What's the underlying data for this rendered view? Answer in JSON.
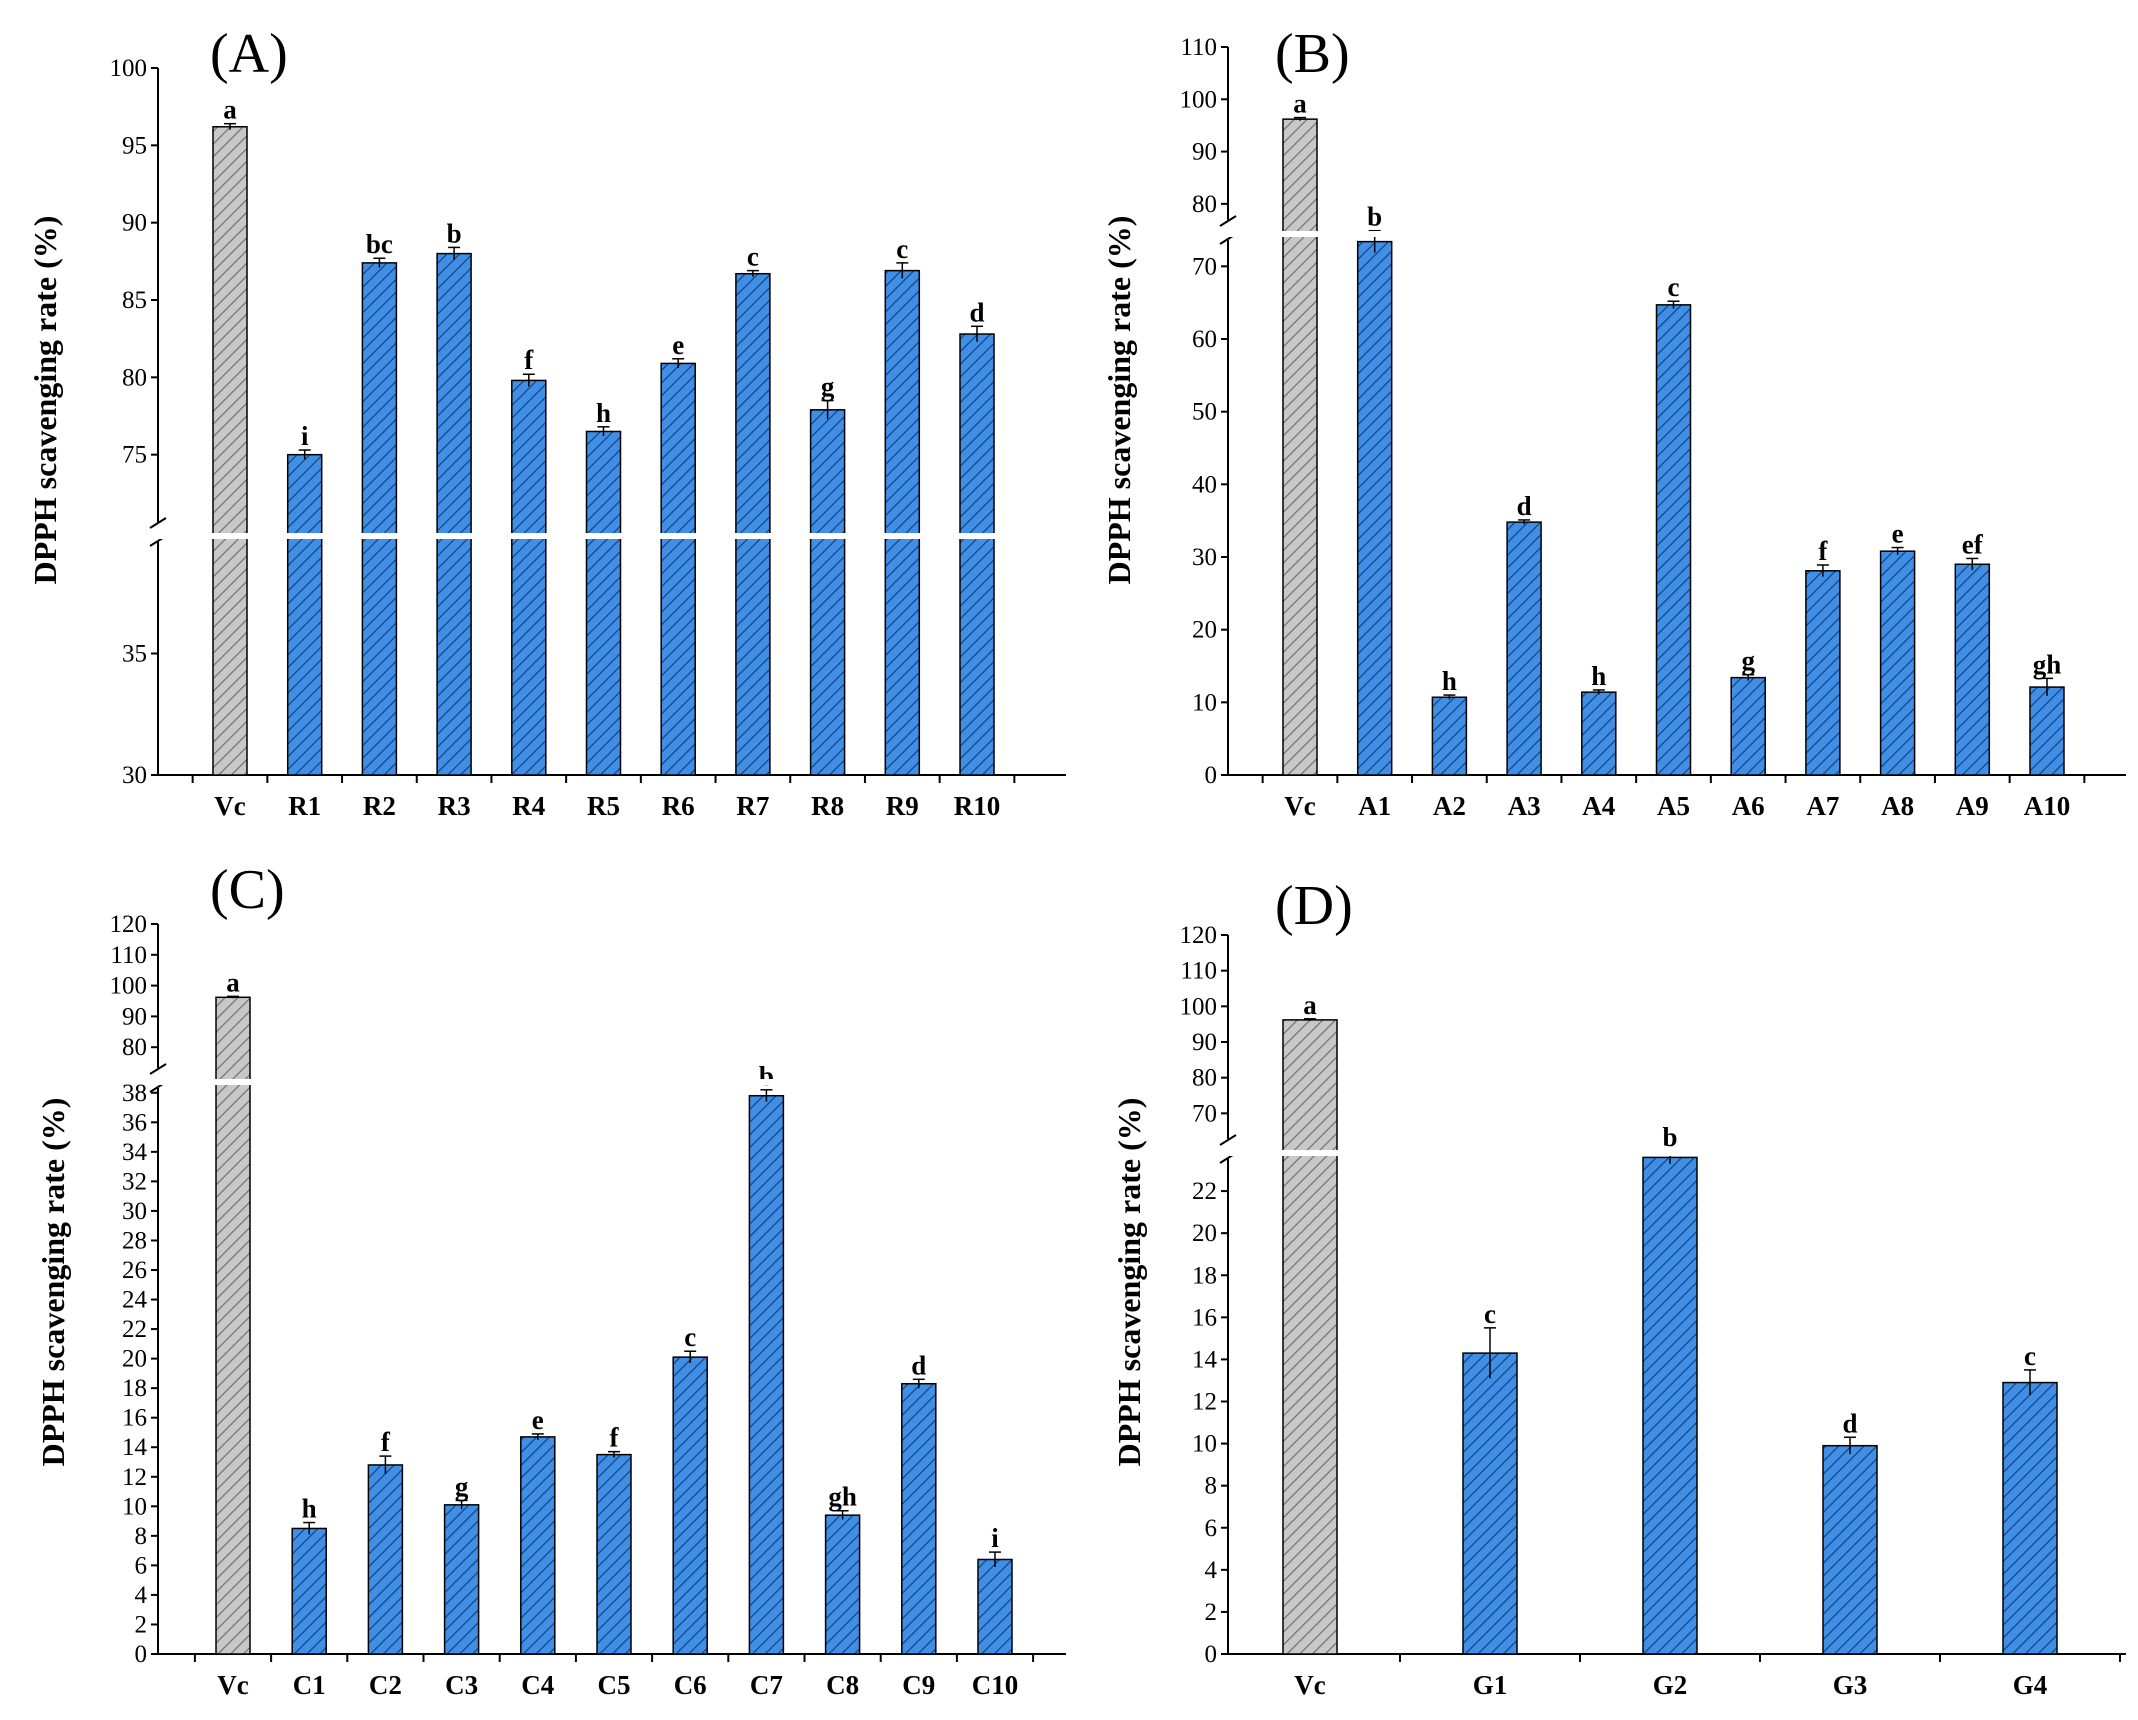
{
  "figure": {
    "colors": {
      "control_fill": "#c8c8c8",
      "control_hatch": "#6f6f6f",
      "bar_fill": "#3f8fe6",
      "bar_hatch": "#1a3f7a",
      "axis": "#000000"
    }
  },
  "chart_data": [
    {
      "panel": "(A)",
      "type": "bar",
      "ylabel": "DPPH scavenging rate (%)",
      "categories": [
        "Vc",
        "R1",
        "R2",
        "R3",
        "R4",
        "R5",
        "R6",
        "R7",
        "R8",
        "R9",
        "R10"
      ],
      "values": [
        96.2,
        75.0,
        87.4,
        88.0,
        79.8,
        76.5,
        80.9,
        86.7,
        77.9,
        86.9,
        82.8
      ],
      "errors": [
        0.2,
        0.3,
        0.3,
        0.4,
        0.4,
        0.3,
        0.3,
        0.2,
        0.6,
        0.5,
        0.5
      ],
      "letters": [
        "a",
        "i",
        "bc",
        "b",
        "f",
        "h",
        "e",
        "c",
        "g",
        "c",
        "d"
      ],
      "ylim": [
        30,
        100
      ],
      "axis_break": [
        40,
        70
      ],
      "yticks": [
        30,
        35,
        75,
        80,
        85,
        90,
        95,
        100
      ]
    },
    {
      "panel": "(B)",
      "type": "bar",
      "ylabel": "DPPH scavenging rate (%)",
      "categories": [
        "Vc",
        "A1",
        "A2",
        "A3",
        "A4",
        "A5",
        "A6",
        "A7",
        "A8",
        "A9",
        "A10"
      ],
      "values": [
        96.2,
        73.4,
        10.7,
        34.8,
        11.4,
        64.7,
        13.4,
        28.1,
        30.8,
        29.0,
        12.1
      ],
      "errors": [
        0.3,
        1.5,
        0.3,
        0.3,
        0.3,
        0.5,
        0.4,
        0.8,
        0.5,
        0.8,
        1.2
      ],
      "letters": [
        "a",
        "b",
        "h",
        "d",
        "h",
        "c",
        "g",
        "f",
        "e",
        "ef",
        "gh"
      ],
      "ylim": [
        0,
        110
      ],
      "axis_break": [
        75,
        75
      ],
      "yticks": [
        0,
        10,
        20,
        30,
        40,
        50,
        60,
        70,
        80,
        90,
        100,
        110
      ]
    },
    {
      "panel": "(C)",
      "type": "bar",
      "ylabel": "DPPH scavenging rate (%)",
      "categories": [
        "Vc",
        "C1",
        "C2",
        "C3",
        "C4",
        "C5",
        "C6",
        "C7",
        "C8",
        "C9",
        "C10"
      ],
      "values": [
        96.2,
        8.5,
        12.8,
        10.1,
        14.7,
        13.5,
        20.1,
        37.8,
        9.4,
        18.3,
        6.4
      ],
      "errors": [
        0.3,
        0.4,
        0.6,
        0.3,
        0.2,
        0.2,
        0.4,
        0.4,
        0.3,
        0.3,
        0.5
      ],
      "letters": [
        "a",
        "h",
        "f",
        "g",
        "e",
        "f",
        "c",
        "b",
        "gh",
        "d",
        "i"
      ],
      "ylim": [
        0,
        120
      ],
      "axis_break": [
        39,
        70
      ],
      "yticks": [
        0,
        2,
        4,
        6,
        8,
        10,
        12,
        14,
        16,
        18,
        20,
        22,
        24,
        26,
        28,
        30,
        32,
        34,
        36,
        38,
        80,
        90,
        100,
        110,
        120
      ]
    },
    {
      "panel": "(D)",
      "type": "bar",
      "ylabel": "DPPH scavenging rate (%)",
      "categories": [
        "Vc",
        "G1",
        "G2",
        "G3",
        "G4"
      ],
      "values": [
        96.2,
        14.3,
        23.6,
        9.9,
        12.9
      ],
      "errors": [
        0.3,
        1.2,
        0.3,
        0.4,
        0.6
      ],
      "letters": [
        "a",
        "c",
        "b",
        "d",
        "c"
      ],
      "ylim": [
        0,
        120
      ],
      "axis_break": [
        24,
        60
      ],
      "yticks": [
        0,
        2,
        4,
        6,
        8,
        10,
        12,
        14,
        16,
        18,
        20,
        22,
        70,
        80,
        90,
        100,
        110,
        120
      ]
    }
  ]
}
